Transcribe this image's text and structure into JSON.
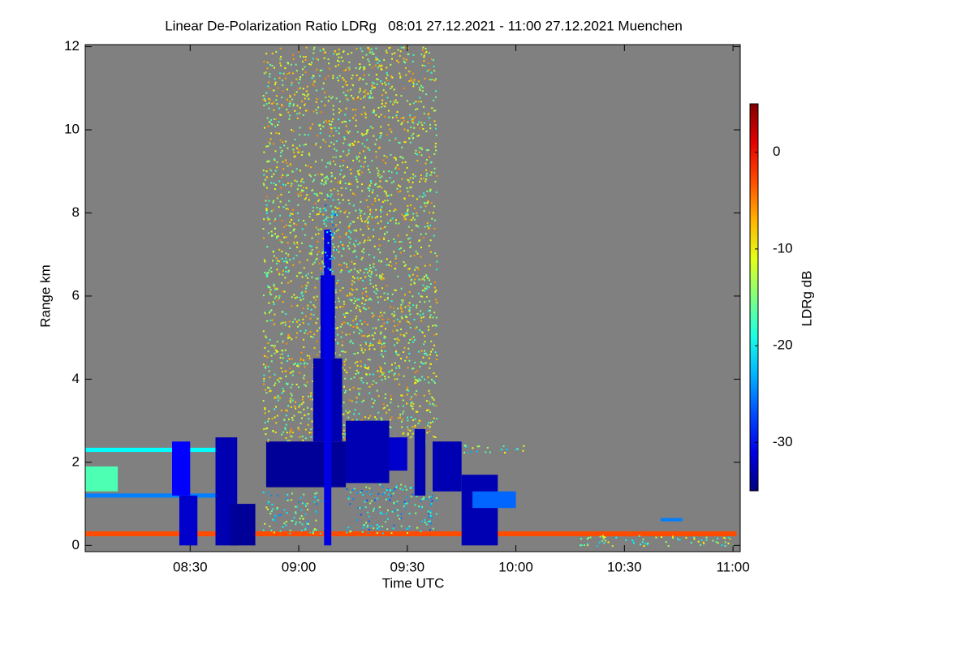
{
  "chart_data": {
    "type": "heatmap",
    "title": "Linear De-Polarization Ratio LDRg   08:01 27.12.2021 - 11:00 27.12.2021 Muenchen",
    "x_label": "Time UTC",
    "y_label": "Range km",
    "colorbar_label": "LDRg dB",
    "xlim": [
      481,
      662
    ],
    "xticks": [
      {
        "value": 510,
        "label": "08:30"
      },
      {
        "value": 540,
        "label": "09:00"
      },
      {
        "value": 570,
        "label": "09:30"
      },
      {
        "value": 600,
        "label": "10:00"
      },
      {
        "value": 630,
        "label": "10:30"
      },
      {
        "value": 660,
        "label": "11:00"
      }
    ],
    "ylim": [
      -0.15,
      12.05
    ],
    "yticks": [
      0,
      2,
      4,
      6,
      8,
      10,
      12
    ],
    "clim": [
      -35,
      5
    ],
    "cticks": [
      0,
      -10,
      -20,
      -30
    ],
    "background": "#808080",
    "cells": [
      {
        "t": [
          481,
          661
        ],
        "r": [
          0.22,
          0.34
        ],
        "v": -3
      },
      {
        "t": [
          481,
          490
        ],
        "r": [
          1.3,
          1.9
        ],
        "v": -17
      },
      {
        "t": [
          481,
          522
        ],
        "r": [
          2.25,
          2.35
        ],
        "v": -20
      },
      {
        "t": [
          481,
          522
        ],
        "r": [
          1.15,
          1.25
        ],
        "v": -25
      },
      {
        "t": [
          507,
          512
        ],
        "r": [
          0,
          1.2
        ],
        "v": -32
      },
      {
        "t": [
          505,
          510
        ],
        "r": [
          1.2,
          2.5
        ],
        "v": -30
      },
      {
        "t": [
          517,
          523
        ],
        "r": [
          0,
          2.6
        ],
        "v": -33
      },
      {
        "t": [
          521,
          528
        ],
        "r": [
          0,
          1.0
        ],
        "v": -34
      },
      {
        "t": [
          531,
          553
        ],
        "r": [
          1.4,
          2.5
        ],
        "v": -34
      },
      {
        "t": [
          530,
          546
        ],
        "r": [
          0.3,
          1.3
        ],
        "v": -18,
        "texture": "speckle"
      },
      {
        "t": [
          530,
          578
        ],
        "r": [
          2.5,
          12
        ],
        "v": -12,
        "texture": "speckle"
      },
      {
        "t": [
          544,
          552
        ],
        "r": [
          2.5,
          4.5
        ],
        "v": -33
      },
      {
        "t": [
          546,
          550
        ],
        "r": [
          4.5,
          6.5
        ],
        "v": -32
      },
      {
        "t": [
          547,
          549
        ],
        "r": [
          0,
          7.6
        ],
        "v": -31
      },
      {
        "t": [
          546,
          550
        ],
        "r": [
          6.5,
          8.5
        ],
        "v": -20,
        "texture": "speckle"
      },
      {
        "t": [
          553,
          565
        ],
        "r": [
          1.5,
          3.0
        ],
        "v": -33
      },
      {
        "t": [
          553,
          578
        ],
        "r": [
          0.3,
          1.5
        ],
        "v": -20,
        "texture": "speckle"
      },
      {
        "t": [
          565,
          570
        ],
        "r": [
          1.8,
          2.6
        ],
        "v": -32
      },
      {
        "t": [
          572,
          575
        ],
        "r": [
          1.2,
          2.8
        ],
        "v": -33
      },
      {
        "t": [
          577,
          585
        ],
        "r": [
          1.3,
          2.5
        ],
        "v": -33
      },
      {
        "t": [
          585,
          595
        ],
        "r": [
          0,
          1.7
        ],
        "v": -33
      },
      {
        "t": [
          585,
          604
        ],
        "r": [
          2.25,
          2.45
        ],
        "v": -17,
        "texture": "speckle"
      },
      {
        "t": [
          588,
          600
        ],
        "r": [
          0.9,
          1.3
        ],
        "v": -26
      },
      {
        "t": [
          640,
          646
        ],
        "r": [
          0.58,
          0.66
        ],
        "v": -25
      },
      {
        "t": [
          615,
          661
        ],
        "r": [
          0,
          0.25
        ],
        "v": -15,
        "texture": "speckle"
      }
    ]
  }
}
